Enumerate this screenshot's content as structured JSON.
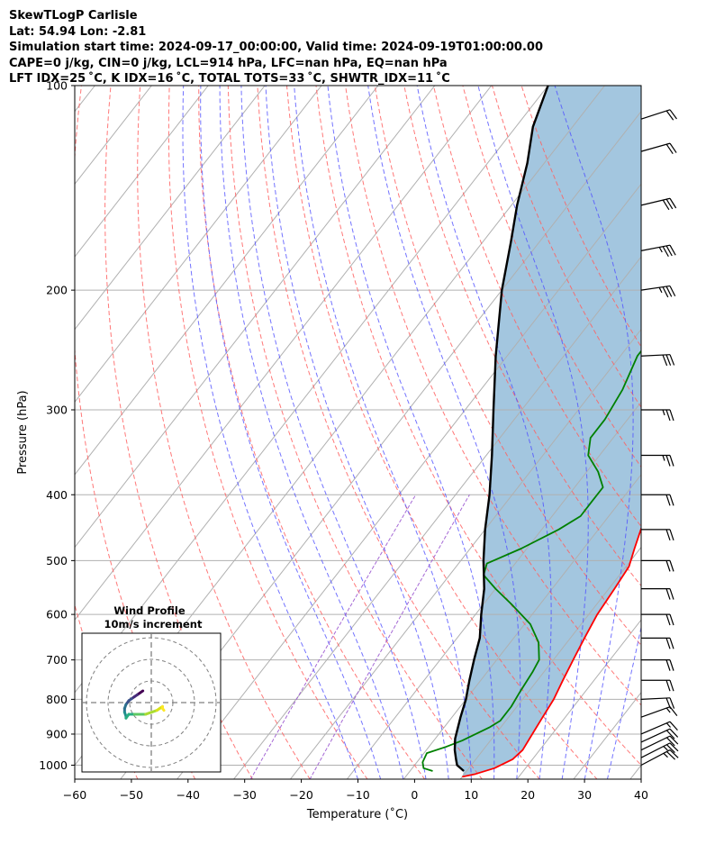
{
  "header": {
    "line1": "SkewTLogP Carlisle",
    "line2": "Lat: 54.94   Lon: -2.81",
    "line3": "Simulation start time: 2024-09-17_00:00:00, Valid time: 2024-09-19T01:00:00.00",
    "line4": "CAPE=0 j/kg, CIN=0 j/kg, LCL=914 hPa, LFC=nan hPa, EQ=nan hPa",
    "line5": "LFT IDX=25 ˚C, K IDX=16 ˚C, TOTAL TOTS=33 ˚C, SHWTR_IDX=11 ˚C"
  },
  "chart_data": {
    "type": "line",
    "subtype": "skew-t log-p",
    "xlabel": "Temperature (˚C)",
    "ylabel": "Pressure (hPa)",
    "xlim": [
      -60,
      40
    ],
    "ylim": [
      1050,
      100
    ],
    "y_scale": "log",
    "grid": true,
    "x_ticks": [
      -60,
      -50,
      -40,
      -30,
      -20,
      -10,
      0,
      10,
      20,
      30,
      40
    ],
    "y_ticks": [
      1000,
      900,
      800,
      700,
      600,
      500,
      400,
      300,
      200,
      100
    ],
    "colors": {
      "temperature": "#ff0000",
      "dewpoint": "#008000",
      "parcel": "#000000",
      "shading": "#a3c6df",
      "dry_adiabats": "#ff6060",
      "moist_adiabats": "#5050ff",
      "mixing_ratio": "#9b59d0",
      "isotherms": "#b0b0b0"
    },
    "series": [
      {
        "id": "temperature",
        "points": [
          [
            1040,
            10
          ],
          [
            1030,
            12
          ],
          [
            1010,
            14.5
          ],
          [
            980,
            16.5
          ],
          [
            950,
            17
          ],
          [
            900,
            16.5
          ],
          [
            850,
            16
          ],
          [
            800,
            15.5
          ],
          [
            750,
            14.5
          ],
          [
            700,
            13.5
          ],
          [
            650,
            12.5
          ],
          [
            600,
            11.5
          ],
          [
            550,
            11
          ],
          [
            510,
            10.5
          ],
          [
            480,
            9
          ],
          [
            450,
            7.5
          ],
          [
            420,
            6
          ],
          [
            390,
            4.5
          ],
          [
            360,
            2.5
          ],
          [
            340,
            1
          ],
          [
            300,
            -2
          ],
          [
            270,
            -4
          ],
          [
            240,
            -6
          ],
          [
            215,
            -7
          ],
          [
            200,
            -7.5
          ],
          [
            180,
            -8
          ],
          [
            170,
            -8
          ],
          [
            160,
            -7
          ],
          [
            140,
            -5
          ],
          [
            125,
            -4
          ],
          [
            115,
            -2
          ],
          [
            108,
            0
          ],
          [
            104,
            1
          ],
          [
            100,
            2
          ]
        ]
      },
      {
        "id": "dewpoint",
        "points": [
          [
            1020,
            4
          ],
          [
            1010,
            2
          ],
          [
            990,
            1
          ],
          [
            960,
            0.5
          ],
          [
            940,
            3
          ],
          [
            920,
            5
          ],
          [
            880,
            8
          ],
          [
            860,
            9
          ],
          [
            820,
            9
          ],
          [
            780,
            8.5
          ],
          [
            730,
            8
          ],
          [
            700,
            7.5
          ],
          [
            660,
            5
          ],
          [
            620,
            1
          ],
          [
            580,
            -5
          ],
          [
            550,
            -10
          ],
          [
            525,
            -14
          ],
          [
            505,
            -15
          ],
          [
            480,
            -11
          ],
          [
            450,
            -7
          ],
          [
            430,
            -5
          ],
          [
            410,
            -5
          ],
          [
            390,
            -5
          ],
          [
            370,
            -8
          ],
          [
            350,
            -12
          ],
          [
            330,
            -14
          ],
          [
            310,
            -14
          ],
          [
            280,
            -15
          ],
          [
            250,
            -17
          ],
          [
            225,
            -17
          ],
          [
            200,
            -17
          ],
          [
            180,
            -18
          ],
          [
            160,
            -19
          ],
          [
            140,
            -20
          ],
          [
            130,
            -20
          ],
          [
            115,
            -21
          ],
          [
            100,
            -21
          ]
        ]
      },
      {
        "id": "parcel",
        "points": [
          [
            1020,
            9.5
          ],
          [
            1000,
            7.5
          ],
          [
            980,
            6.5
          ],
          [
            950,
            5
          ],
          [
            914,
            3.5
          ],
          [
            850,
            1.5
          ],
          [
            800,
            0
          ],
          [
            750,
            -2
          ],
          [
            700,
            -4
          ],
          [
            650,
            -6
          ],
          [
            600,
            -9
          ],
          [
            550,
            -12
          ],
          [
            500,
            -16
          ],
          [
            450,
            -20
          ],
          [
            400,
            -24
          ],
          [
            350,
            -29
          ],
          [
            300,
            -35
          ],
          [
            250,
            -42
          ],
          [
            200,
            -50
          ],
          [
            170,
            -55
          ],
          [
            150,
            -59
          ],
          [
            130,
            -63
          ],
          [
            115,
            -67
          ],
          [
            100,
            -70
          ]
        ]
      }
    ],
    "wind_barbs": [
      {
        "p": 1000,
        "speed": 25,
        "dir": 250
      },
      {
        "p": 975,
        "speed": 25,
        "dir": 245
      },
      {
        "p": 950,
        "speed": 20,
        "dir": 240
      },
      {
        "p": 925,
        "speed": 20,
        "dir": 235
      },
      {
        "p": 900,
        "speed": 15,
        "dir": 230
      },
      {
        "p": 850,
        "speed": 15,
        "dir": 220
      },
      {
        "p": 800,
        "speed": 20,
        "dir": 185
      },
      {
        "p": 750,
        "speed": 20,
        "dir": 180
      },
      {
        "p": 700,
        "speed": 20,
        "dir": 180
      },
      {
        "p": 650,
        "speed": 20,
        "dir": 180
      },
      {
        "p": 600,
        "speed": 20,
        "dir": 180
      },
      {
        "p": 550,
        "speed": 20,
        "dir": 180
      },
      {
        "p": 500,
        "speed": 20,
        "dir": 180
      },
      {
        "p": 450,
        "speed": 20,
        "dir": 180
      },
      {
        "p": 400,
        "speed": 20,
        "dir": 180
      },
      {
        "p": 350,
        "speed": 25,
        "dir": 180
      },
      {
        "p": 300,
        "speed": 25,
        "dir": 180
      },
      {
        "p": 250,
        "speed": 30,
        "dir": 185
      },
      {
        "p": 200,
        "speed": 35,
        "dir": 195
      },
      {
        "p": 175,
        "speed": 35,
        "dir": 200
      },
      {
        "p": 150,
        "speed": 30,
        "dir": 205
      },
      {
        "p": 125,
        "speed": 20,
        "dir": 210
      },
      {
        "p": 112,
        "speed": 20,
        "dir": 215
      }
    ],
    "hodograph": {
      "title_line1": "Wind Profile",
      "title_line2": "10m/s increment",
      "points": [
        [
          -3,
          6
        ],
        [
          -4,
          5
        ],
        [
          -5,
          4
        ],
        [
          -6,
          3
        ],
        [
          -7,
          2
        ],
        [
          -8,
          1
        ],
        [
          -9,
          -1
        ],
        [
          -9.5,
          -3
        ],
        [
          -9.5,
          -5
        ],
        [
          -9,
          -7
        ],
        [
          -9,
          -8
        ],
        [
          -8,
          -6
        ],
        [
          -6,
          -6
        ],
        [
          -4,
          -6
        ],
        [
          -2,
          -6
        ],
        [
          0,
          -5
        ],
        [
          2,
          -4
        ],
        [
          3,
          -3
        ],
        [
          4,
          -2
        ],
        [
          4,
          -3
        ],
        [
          4.5,
          -4
        ]
      ],
      "colormap_start": "#440154",
      "colormap_end": "#fde725"
    }
  }
}
